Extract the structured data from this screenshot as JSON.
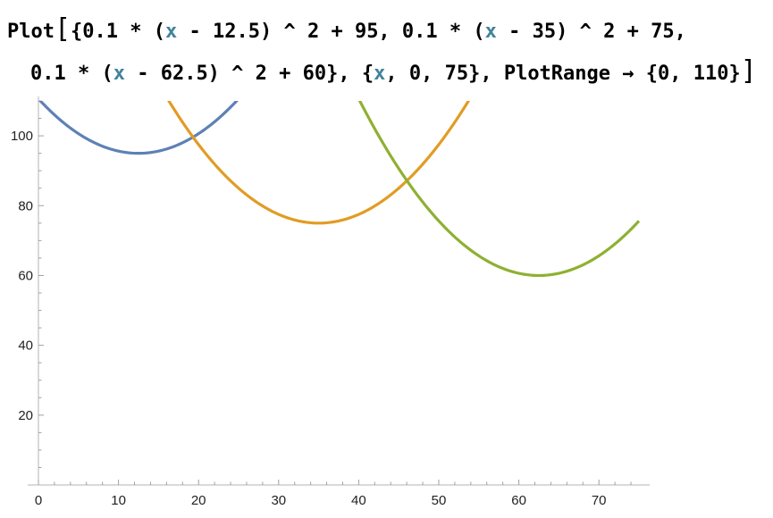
{
  "input": {
    "line1_a": "Plot",
    "line1_b": "{0.1 * (",
    "line1_var": "x",
    "line1_c": " - 12.5) ^ 2 + 95, 0.1 * (",
    "line1_var2": "x",
    "line1_d": " - 35) ^ 2 + 75,",
    "line2_a": "0.1 * (",
    "line2_var": "x",
    "line2_b": " - 62.5) ^ 2 + 60}, {",
    "line2_var2": "x",
    "line2_c": ", 0, 75}, PlotRange → {0, 110}",
    "open_bracket": "[",
    "close_bracket": "]"
  },
  "chart_data": {
    "type": "line",
    "title": "",
    "xlabel": "",
    "ylabel": "",
    "xlim": [
      0,
      75
    ],
    "ylim": [
      0,
      110
    ],
    "xticks": [
      0,
      10,
      20,
      30,
      40,
      50,
      60,
      70
    ],
    "yticks": [
      20,
      40,
      60,
      80,
      100
    ],
    "grid": false,
    "legend": "none",
    "series": [
      {
        "formula": "0.1*(x-12.5)^2+95",
        "a": 0.1,
        "h": 12.5,
        "k": 95,
        "color": "#5e81b5"
      },
      {
        "formula": "0.1*(x-35)^2+75",
        "a": 0.1,
        "h": 35,
        "k": 75,
        "color": "#e19c24"
      },
      {
        "formula": "0.1*(x-62.5)^2+60",
        "a": 0.1,
        "h": 62.5,
        "k": 60,
        "color": "#8fb032"
      }
    ]
  }
}
